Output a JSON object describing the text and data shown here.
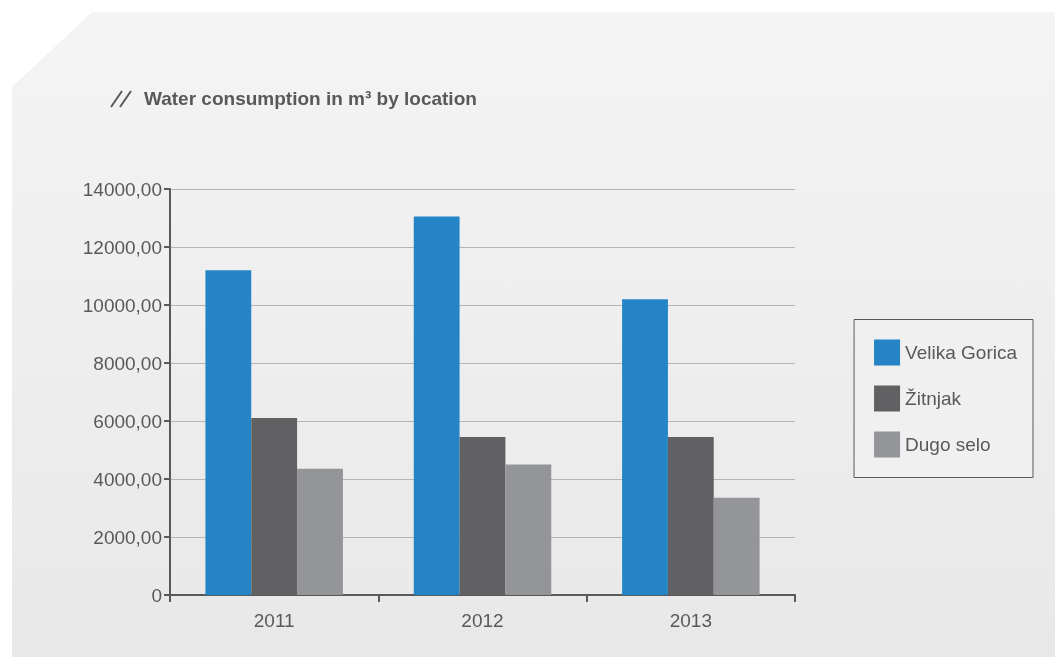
{
  "chart_data": {
    "type": "bar",
    "title": "Water consumption in m³ by location",
    "categories": [
      "2011",
      "2012",
      "2013"
    ],
    "series": [
      {
        "name": "Velika Gorica",
        "color": "#2484c6",
        "values": [
          11200,
          13050,
          10200
        ]
      },
      {
        "name": "Žitnjak",
        "color": "#616062",
        "values": [
          6100,
          5450,
          5450
        ]
      },
      {
        "name": "Dugo selo",
        "color": "#949599",
        "values": [
          4350,
          4500,
          3350
        ]
      }
    ],
    "ylim": [
      0,
      14000
    ],
    "yticks": [
      0,
      {
        "value": 2000,
        "label": "2000,00"
      },
      {
        "value": 4000,
        "label": "4000,00"
      },
      {
        "value": 6000,
        "label": "6000,00"
      },
      {
        "value": 8000,
        "label": "8000,00"
      },
      {
        "value": 10000,
        "label": "10000,00"
      },
      {
        "value": 12000,
        "label": "12000,00"
      },
      {
        "value": 14000,
        "label": "14000,00"
      }
    ],
    "grid": "y",
    "legend": "right"
  }
}
